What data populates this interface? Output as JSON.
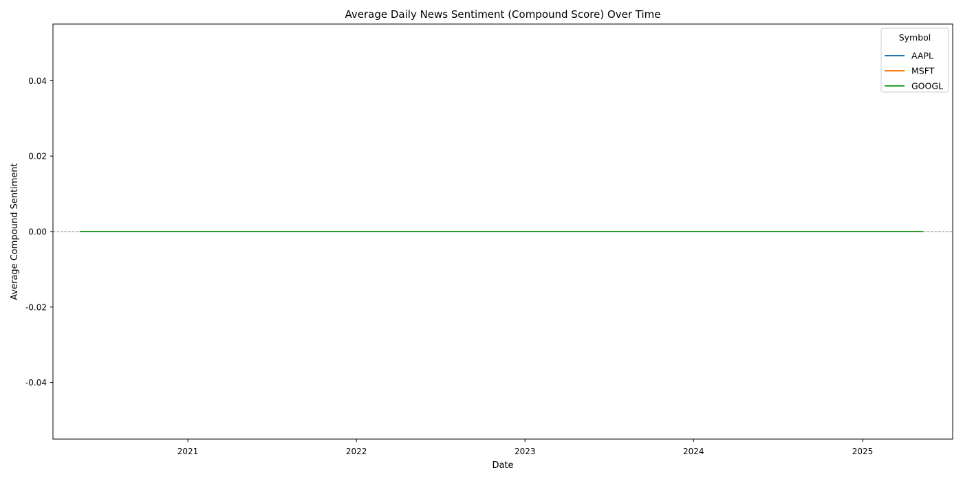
{
  "chart_data": {
    "type": "line",
    "title": "Average Daily News Sentiment (Compound Score) Over Time",
    "xlabel": "Date",
    "ylabel": "Average Compound Sentiment",
    "x_range": [
      "2020-03-15",
      "2025-07-15"
    ],
    "ylim": [
      -0.055,
      0.055
    ],
    "x_ticks": [
      {
        "label": "2021",
        "date": "2021-01-01"
      },
      {
        "label": "2022",
        "date": "2022-01-01"
      },
      {
        "label": "2023",
        "date": "2023-01-01"
      },
      {
        "label": "2024",
        "date": "2024-01-01"
      },
      {
        "label": "2025",
        "date": "2025-01-01"
      }
    ],
    "y_ticks": [
      {
        "label": "0.04",
        "value": 0.04
      },
      {
        "label": "0.02",
        "value": 0.02
      },
      {
        "label": "0.00",
        "value": 0.0
      },
      {
        "label": "-0.02",
        "value": -0.02
      },
      {
        "label": "-0.04",
        "value": -0.04
      }
    ],
    "reference_line": {
      "y": 0.0,
      "style": "dashed",
      "color": "#808080"
    },
    "grid": false,
    "legend": {
      "title": "Symbol",
      "placement": "top-right"
    },
    "series": [
      {
        "name": "AAPL",
        "color": "#1f77b4",
        "x": [
          "2020-05-12",
          "2025-05-12"
        ],
        "y": [
          0.0,
          0.0
        ]
      },
      {
        "name": "MSFT",
        "color": "#ff7f0e",
        "x": [
          "2020-05-12",
          "2025-05-12"
        ],
        "y": [
          0.0,
          0.0
        ]
      },
      {
        "name": "GOOGL",
        "color": "#2ca02c",
        "x": [
          "2020-05-12",
          "2025-05-12"
        ],
        "y": [
          0.0,
          0.0
        ]
      }
    ]
  }
}
